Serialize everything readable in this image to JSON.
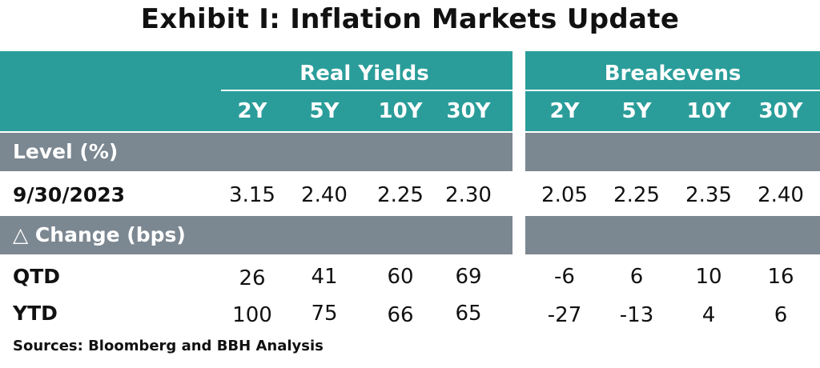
{
  "title": "Exhibit I: Inflation Markets Update",
  "source": "Sources: Bloomberg and BBH Analysis",
  "colors": {
    "header": "#2a9d9a",
    "band": "#7b8791"
  },
  "chart_data": {
    "type": "table",
    "groups": [
      {
        "name": "Real Yields",
        "columns": [
          "2Y",
          "5Y",
          "10Y",
          "30Y"
        ]
      },
      {
        "name": "Breakevens",
        "columns": [
          "2Y",
          "5Y",
          "10Y",
          "30Y"
        ]
      }
    ],
    "sections": [
      {
        "label": "Level (%)",
        "rows": [
          {
            "label": "9/30/2023",
            "real_yields": [
              "3.15",
              "2.40",
              "2.25",
              "2.30"
            ],
            "breakevens": [
              "2.05",
              "2.25",
              "2.35",
              "2.40"
            ]
          }
        ]
      },
      {
        "label": "△ Change (bps)",
        "rows": [
          {
            "label": "QTD",
            "real_yields": [
              "26",
              "41",
              "60",
              "69"
            ],
            "breakevens": [
              "-6",
              "6",
              "10",
              "16"
            ]
          },
          {
            "label": "YTD",
            "real_yields": [
              "100",
              "75",
              "66",
              "65"
            ],
            "breakevens": [
              "-27",
              "-13",
              "4",
              "6"
            ]
          }
        ]
      }
    ]
  }
}
